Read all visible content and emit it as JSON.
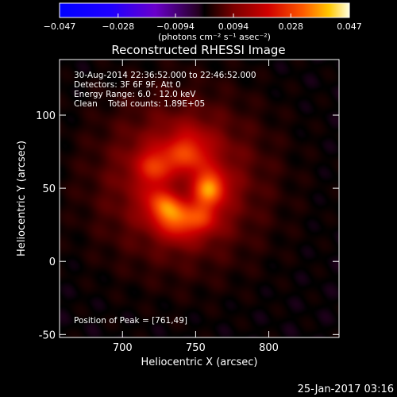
{
  "chart_data": {
    "type": "heatmap",
    "title": "Reconstructed RHESSI Image",
    "xlabel": "Heliocentric X (arcsec)",
    "ylabel": "Heliocentric Y (arcsec)",
    "xlim": [
      657,
      848
    ],
    "ylim": [
      -52,
      138
    ],
    "x_ticks": [
      {
        "value": 700,
        "label": "700"
      },
      {
        "value": 750,
        "label": "750"
      },
      {
        "value": 800,
        "label": "800"
      }
    ],
    "y_ticks": [
      {
        "value": 100,
        "label": "100"
      },
      {
        "value": 50,
        "label": "50"
      },
      {
        "value": 0,
        "label": "0"
      },
      {
        "value": -50,
        "label": "-50"
      }
    ],
    "colorbar": {
      "label": "(photons cm⁻² s⁻¹ asec⁻²)",
      "range": [
        -0.047,
        0.047
      ],
      "ticks": [
        {
          "value": -0.047,
          "label": "−0.047"
        },
        {
          "value": -0.028,
          "label": "−0.028"
        },
        {
          "value": -0.0094,
          "label": "−0.0094"
        },
        {
          "value": 0.0094,
          "label": "0.0094"
        },
        {
          "value": 0.028,
          "label": "0.028"
        },
        {
          "value": 0.047,
          "label": "0.047"
        }
      ],
      "colormap": [
        {
          "stop": 0.0,
          "color": "#0000ff"
        },
        {
          "stop": 0.18,
          "color": "#2000ff"
        },
        {
          "stop": 0.33,
          "color": "#6a00cc"
        },
        {
          "stop": 0.48,
          "color": "#240020"
        },
        {
          "stop": 0.5,
          "color": "#000000"
        },
        {
          "stop": 0.6,
          "color": "#7a0000"
        },
        {
          "stop": 0.72,
          "color": "#d00000"
        },
        {
          "stop": 0.84,
          "color": "#ff5a00"
        },
        {
          "stop": 0.93,
          "color": "#ffc800"
        },
        {
          "stop": 1.0,
          "color": "#ffffe0"
        }
      ]
    },
    "annotations": [
      "30-Aug-2014 22:36:52.000 to 22:46:52.000",
      "Detectors: 3F 6F 9F, Att 0",
      "Energy Range: 6.0 - 12.0 keV",
      "Clean    Total counts: 1.89E+05"
    ],
    "peak_label": "Position of Peak = [761,49]",
    "peak": {
      "x": 761,
      "y": 49
    },
    "source_components": [
      {
        "x": 740,
        "y": 55,
        "sigma": 38,
        "amplitude": 0.0148
      },
      {
        "x": 760,
        "y": 50,
        "sigma": 8,
        "amplitude": 0.0239
      },
      {
        "x": 728,
        "y": 38,
        "sigma": 9,
        "amplitude": 0.0191
      },
      {
        "x": 739,
        "y": 27,
        "sigma": 9,
        "amplitude": 0.0168
      },
      {
        "x": 745,
        "y": 75,
        "sigma": 11,
        "amplitude": 0.0155
      },
      {
        "x": 722,
        "y": 65,
        "sigma": 9,
        "amplitude": 0.0147
      },
      {
        "x": 756,
        "y": 30,
        "sigma": 8,
        "amplitude": 0.0132
      },
      {
        "x": 738,
        "y": 52,
        "sigma": 8,
        "amplitude": -0.0105
      }
    ]
  },
  "footer": {
    "timestamp": "25-Jan-2017 03:16"
  }
}
